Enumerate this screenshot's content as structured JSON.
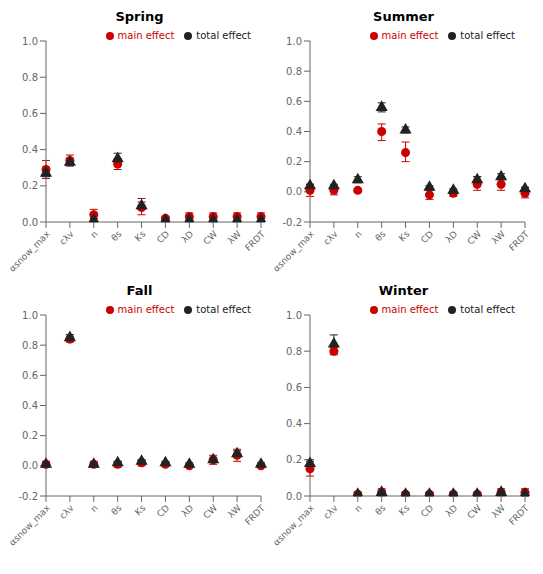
{
  "chart_data": [
    {
      "type": "scatter",
      "title": "Spring",
      "categories": [
        "αsnow_max",
        "cλv",
        "n",
        "θs",
        "Ks",
        "CD",
        "λD",
        "CW",
        "λW",
        "FRDT"
      ],
      "ylim": [
        0.0,
        1.0
      ],
      "yticks": [
        {
          "value": 0.0,
          "label": "0.0"
        },
        0.2,
        0.4,
        0.6,
        0.8,
        {
          "value": 1.0,
          "label": "1.0"
        }
      ],
      "grid": false,
      "legend": "upper right",
      "series": [
        {
          "name": "main effect",
          "color": "#cc0000",
          "marker": "circle",
          "values": [
            0.29,
            0.34,
            0.04,
            0.32,
            0.08,
            0.02,
            0.03,
            0.03,
            0.03,
            0.03
          ],
          "err_low": [
            0.05,
            0.03,
            0.03,
            0.03,
            0.04,
            0.01,
            0.02,
            0.02,
            0.02,
            0.02
          ],
          "err_high": [
            0.05,
            0.03,
            0.03,
            0.03,
            0.05,
            0.01,
            0.02,
            0.02,
            0.02,
            0.02
          ]
        },
        {
          "name": "total effect",
          "color": "#222222",
          "marker": "triangle",
          "values": [
            0.27,
            0.33,
            0.01,
            0.35,
            0.09,
            0.01,
            0.01,
            0.01,
            0.01,
            0.01
          ],
          "err_low": [
            0.02,
            0.02,
            0.01,
            0.03,
            0.02,
            0.01,
            0.01,
            0.01,
            0.01,
            0.01
          ],
          "err_high": [
            0.02,
            0.02,
            0.01,
            0.03,
            0.02,
            0.01,
            0.01,
            0.01,
            0.01,
            0.01
          ]
        }
      ]
    },
    {
      "type": "scatter",
      "title": "Summer",
      "categories": [
        "αsnow_max",
        "cλv",
        "n",
        "θs",
        "Ks",
        "CD",
        "λD",
        "CW",
        "λW",
        "FRDT"
      ],
      "ylim": [
        -0.2,
        1.0
      ],
      "yticks": [
        -0.2,
        {
          "value": 0.0,
          "label": "0.0"
        },
        0.2,
        0.4,
        0.6,
        0.8,
        {
          "value": 1.0,
          "label": "1.0"
        }
      ],
      "grid": false,
      "legend": "upper right",
      "series": [
        {
          "name": "main effect",
          "color": "#cc0000",
          "marker": "circle",
          "values": [
            0.01,
            0.01,
            0.01,
            0.4,
            0.26,
            -0.02,
            -0.01,
            0.05,
            0.05,
            -0.01
          ],
          "err_low": [
            0.04,
            0.03,
            0.01,
            0.06,
            0.06,
            0.03,
            0.02,
            0.04,
            0.04,
            0.03
          ],
          "err_high": [
            0.04,
            0.03,
            0.01,
            0.05,
            0.07,
            0.03,
            0.02,
            0.05,
            0.05,
            0.04
          ]
        },
        {
          "name": "total effect",
          "color": "#222222",
          "marker": "triangle",
          "values": [
            0.04,
            0.04,
            0.08,
            0.56,
            0.41,
            0.03,
            0.01,
            0.08,
            0.1,
            0.02
          ],
          "err_low": [
            0.01,
            0.01,
            0.02,
            0.03,
            0.02,
            0.01,
            0.01,
            0.02,
            0.02,
            0.01
          ],
          "err_high": [
            0.01,
            0.01,
            0.02,
            0.03,
            0.02,
            0.01,
            0.01,
            0.02,
            0.02,
            0.01
          ]
        }
      ]
    },
    {
      "type": "scatter",
      "title": "Fall",
      "categories": [
        "αsnow_max",
        "cλv",
        "n",
        "θs",
        "Ks",
        "CD",
        "λD",
        "CW",
        "λW",
        "FRDT"
      ],
      "ylim": [
        -0.2,
        1.0
      ],
      "yticks": [
        -0.2,
        {
          "value": 0.0,
          "label": "0.0"
        },
        0.2,
        0.4,
        0.6,
        0.8,
        {
          "value": 1.0,
          "label": "1.0"
        }
      ],
      "grid": false,
      "legend": "upper right",
      "series": [
        {
          "name": "main effect",
          "color": "#cc0000",
          "marker": "circle",
          "values": [
            0.01,
            0.84,
            0.01,
            0.01,
            0.02,
            0.01,
            0.0,
            0.04,
            0.07,
            0.0
          ],
          "err_low": [
            0.02,
            0.02,
            0.02,
            0.02,
            0.02,
            0.01,
            0.01,
            0.03,
            0.04,
            0.01
          ],
          "err_high": [
            0.02,
            0.02,
            0.02,
            0.02,
            0.02,
            0.01,
            0.01,
            0.03,
            0.04,
            0.01
          ]
        },
        {
          "name": "total effect",
          "color": "#222222",
          "marker": "triangle",
          "values": [
            0.01,
            0.85,
            0.01,
            0.02,
            0.03,
            0.02,
            0.01,
            0.04,
            0.08,
            0.01
          ],
          "err_low": [
            0.01,
            0.02,
            0.01,
            0.01,
            0.01,
            0.01,
            0.01,
            0.01,
            0.02,
            0.01
          ],
          "err_high": [
            0.01,
            0.02,
            0.01,
            0.01,
            0.01,
            0.01,
            0.01,
            0.01,
            0.02,
            0.01
          ]
        }
      ]
    },
    {
      "type": "scatter",
      "title": "Winter",
      "categories": [
        "αsnow_max",
        "cλv",
        "n",
        "θs",
        "Ks",
        "CD",
        "λD",
        "CW",
        "λW",
        "FRDT"
      ],
      "ylim": [
        0.0,
        1.0
      ],
      "yticks": [
        {
          "value": 0.0,
          "label": "0.0"
        },
        0.2,
        0.4,
        0.6,
        0.8,
        {
          "value": 1.0,
          "label": "1.0"
        }
      ],
      "grid": false,
      "legend": "upper right",
      "series": [
        {
          "name": "main effect",
          "color": "#cc0000",
          "marker": "circle",
          "values": [
            0.15,
            0.8,
            0.01,
            0.02,
            0.01,
            0.01,
            0.01,
            0.01,
            0.02,
            0.02
          ],
          "err_low": [
            0.04,
            0.02,
            0.01,
            0.02,
            0.01,
            0.01,
            0.01,
            0.01,
            0.02,
            0.02
          ],
          "err_high": [
            0.04,
            0.02,
            0.01,
            0.02,
            0.01,
            0.01,
            0.01,
            0.01,
            0.02,
            0.02
          ]
        },
        {
          "name": "total effect",
          "color": "#222222",
          "marker": "triangle",
          "values": [
            0.18,
            0.84,
            0.01,
            0.02,
            0.01,
            0.01,
            0.01,
            0.01,
            0.02,
            0.01
          ],
          "err_low": [
            0.02,
            0.05,
            0.01,
            0.01,
            0.01,
            0.01,
            0.01,
            0.01,
            0.01,
            0.01
          ],
          "err_high": [
            0.02,
            0.05,
            0.01,
            0.01,
            0.01,
            0.01,
            0.01,
            0.01,
            0.01,
            0.01
          ]
        }
      ]
    }
  ]
}
